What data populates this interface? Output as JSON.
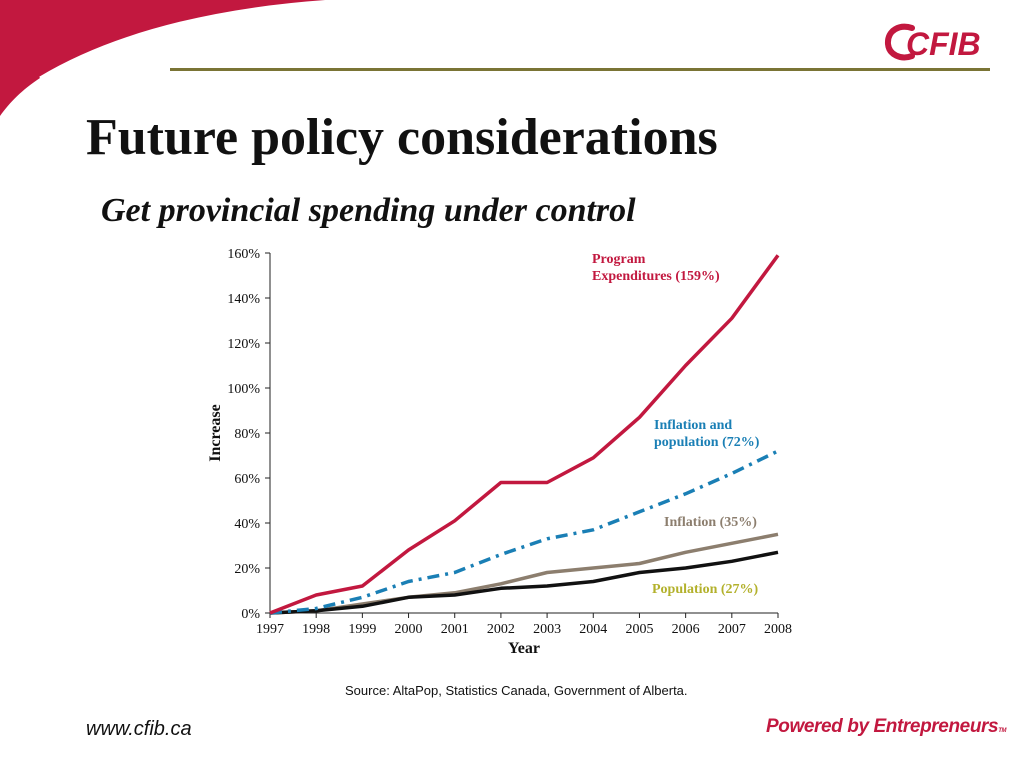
{
  "brand": {
    "logo_text": "CFIB",
    "website": "www.cfib.ca",
    "tagline": "Powered by Entrepreneurs",
    "tagline_mark": "TM",
    "accent_color": "#c2183f",
    "rule_color": "#7a7435"
  },
  "slide": {
    "title": "Future policy considerations",
    "subtitle": "Get provincial spending under control",
    "source": "Source: AltaPop, Statistics Canada, Government of Alberta."
  },
  "chart_data": {
    "type": "line",
    "xlabel": "Year",
    "ylabel": "Increase",
    "ylim": [
      0,
      1.6
    ],
    "grid": false,
    "x": [
      "1997",
      "1998",
      "1999",
      "2000",
      "2001",
      "2002",
      "2003",
      "2004",
      "2005",
      "2006",
      "2007",
      "2008"
    ],
    "y_ticks": [
      0,
      0.2,
      0.4,
      0.6,
      0.8,
      1.0,
      1.2,
      1.4,
      1.6
    ],
    "y_tick_labels": [
      "0%",
      "20%",
      "40%",
      "60%",
      "80%",
      "100%",
      "120%",
      "140%",
      "160%"
    ],
    "series": [
      {
        "name": "Program Expenditures (159%)",
        "label_lines": [
          "Program",
          "Expenditures (159%)"
        ],
        "color": "#c2183f",
        "style": "solid",
        "values": [
          0,
          0.08,
          0.12,
          0.28,
          0.41,
          0.58,
          0.58,
          0.69,
          0.87,
          1.1,
          1.31,
          1.59
        ]
      },
      {
        "name": "Inflation and population (72%)",
        "label_lines": [
          "Inflation and",
          "population (72%)"
        ],
        "color": "#1a7fb5",
        "style": "dashdot",
        "values": [
          0,
          0.02,
          0.07,
          0.14,
          0.18,
          0.26,
          0.33,
          0.37,
          0.45,
          0.53,
          0.62,
          0.72
        ]
      },
      {
        "name": "Inflation (35%)",
        "label_lines": [
          "Inflation (35%)"
        ],
        "color": "#8c7e6e",
        "style": "solid",
        "values": [
          0,
          0.01,
          0.04,
          0.07,
          0.09,
          0.13,
          0.18,
          0.2,
          0.22,
          0.27,
          0.31,
          0.35
        ]
      },
      {
        "name": "Population (27%)",
        "label_lines": [
          "Population (27%)"
        ],
        "label_color": "#b3b12c",
        "color": "#111111",
        "style": "solid",
        "values": [
          0,
          0.01,
          0.03,
          0.07,
          0.08,
          0.11,
          0.12,
          0.14,
          0.18,
          0.2,
          0.23,
          0.27
        ]
      }
    ]
  }
}
